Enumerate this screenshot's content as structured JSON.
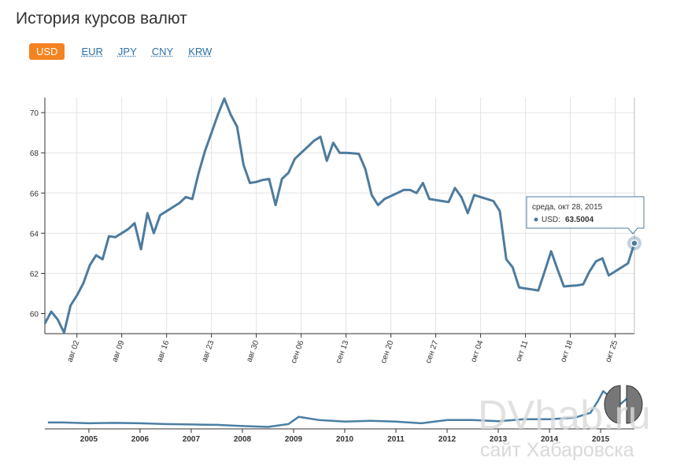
{
  "header": {
    "title": "История курсов валют",
    "tabs": [
      "USD",
      "EUR",
      "JPY",
      "CNY",
      "KRW"
    ]
  },
  "watermark": {
    "site": "DVhab.ru",
    "caption": "сайт Хабаровска"
  },
  "chart_data": [
    {
      "type": "line",
      "categories": [
        null,
        null,
        null,
        null,
        null,
        "авг 02",
        null,
        null,
        null,
        null,
        null,
        null,
        "авг 09",
        null,
        null,
        null,
        null,
        null,
        null,
        "авг 16",
        null,
        null,
        null,
        null,
        null,
        null,
        "авг 23",
        null,
        null,
        null,
        null,
        null,
        null,
        "авг 30",
        null,
        null,
        null,
        null,
        null,
        null,
        "сен 06",
        null,
        null,
        null,
        null,
        null,
        null,
        "сен 13",
        null,
        null,
        null,
        null,
        null,
        null,
        "сен 20",
        null,
        null,
        null,
        null,
        null,
        null,
        "сен 27",
        null,
        null,
        null,
        null,
        null,
        null,
        "окт 04",
        null,
        null,
        null,
        null,
        null,
        null,
        "окт 11",
        null,
        null,
        null,
        null,
        null,
        null,
        "окт 18",
        null,
        null,
        null,
        null,
        null,
        null,
        "окт 25",
        null,
        null,
        null
      ],
      "series": [
        {
          "name": "USD",
          "color": "#4d7b9e",
          "values": [
            59.5,
            60.1,
            59.7,
            59.05,
            60.4,
            60.9,
            61.5,
            62.4,
            62.9,
            62.7,
            63.85,
            63.8,
            64.0,
            64.2,
            64.5,
            63.2,
            65.0,
            64.0,
            64.9,
            65.1,
            65.3,
            65.5,
            65.8,
            65.7,
            67.0,
            68.1,
            69.0,
            69.9,
            70.7,
            69.9,
            69.3,
            67.4,
            66.5,
            66.55,
            66.65,
            66.7,
            65.4,
            66.7,
            67.0,
            67.7,
            68.0,
            68.3,
            68.6,
            68.8,
            67.6,
            68.5,
            68.0,
            68.0,
            67.98,
            67.95,
            67.2,
            65.9,
            65.4,
            65.7,
            65.85,
            66.0,
            66.15,
            66.15,
            66.0,
            66.5,
            65.7,
            65.65,
            65.6,
            65.55,
            66.25,
            65.8,
            65.0,
            65.9,
            65.8,
            65.7,
            65.6,
            65.1,
            62.7,
            62.3,
            61.3,
            61.25,
            61.2,
            61.15,
            62.1,
            63.1,
            62.2,
            61.35,
            61.38,
            61.4,
            61.45,
            62.1,
            62.6,
            62.75,
            61.9,
            62.1,
            62.3,
            62.5,
            63.5004
          ]
        }
      ],
      "ylim": [
        59,
        70.75
      ],
      "yticks": [
        60,
        62,
        64,
        66,
        68,
        70
      ],
      "grid": true,
      "tooltip": {
        "date": "среда, окт 28, 2015",
        "label": "USD:"
      }
    },
    {
      "type": "line",
      "x": [
        2004.2,
        2004.5,
        2005,
        2005.5,
        2006,
        2006.5,
        2007,
        2007.5,
        2008,
        2008.5,
        2008.9,
        2009.1,
        2009.5,
        2010,
        2010.5,
        2011,
        2011.5,
        2012,
        2012.5,
        2013,
        2013.5,
        2014,
        2014.5,
        2014.8,
        2014.95,
        2015.05,
        2015.2,
        2015.35,
        2015.5,
        2015.6,
        2015.66
      ],
      "series": [
        {
          "name": "USD",
          "color": "#4a7fa3",
          "values": [
            29,
            29,
            28,
            28.5,
            28,
            27,
            26.5,
            26,
            24.5,
            23.5,
            27,
            36,
            32,
            30,
            31,
            30,
            28,
            32,
            32,
            30.5,
            33,
            33,
            35,
            41,
            56,
            68,
            60,
            50,
            58,
            67,
            63.5
          ]
        }
      ],
      "xlim": [
        2004.14,
        2015.66
      ],
      "ylim": [
        21,
        75
      ],
      "xticks": [
        2005,
        2006,
        2007,
        2008,
        2009,
        2010,
        2011,
        2012,
        2013,
        2014,
        2015
      ]
    }
  ]
}
